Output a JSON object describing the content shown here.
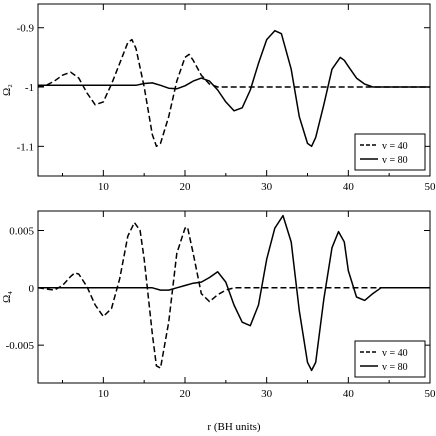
{
  "chart_data": [
    {
      "type": "line",
      "ylabel": "Ω₂",
      "xlabel": "",
      "xlim": [
        2,
        50
      ],
      "ylim": [
        -1.15,
        -0.86
      ],
      "x_ticks": [
        10,
        20,
        30,
        40,
        50
      ],
      "y_ticks": [
        -0.9,
        -1,
        -1.1
      ],
      "y_tick_labels": [
        "-0.9",
        "-1",
        "-1.1"
      ],
      "legend": "bottom-right",
      "series": [
        {
          "name": "v = 40",
          "style": "dashed",
          "x": [
            2,
            3,
            4,
            5,
            6,
            7,
            8,
            9,
            10,
            11,
            12,
            13,
            13.5,
            14,
            15,
            16,
            16.5,
            17,
            18,
            19,
            20,
            20.5,
            21,
            22,
            23,
            24,
            25,
            30,
            40,
            50
          ],
          "y": [
            -1.0,
            -0.997,
            -0.99,
            -0.98,
            -0.975,
            -0.985,
            -1.01,
            -1.03,
            -1.025,
            -0.995,
            -0.96,
            -0.925,
            -0.92,
            -0.935,
            -1.0,
            -1.08,
            -1.1,
            -1.095,
            -1.05,
            -0.99,
            -0.95,
            -0.945,
            -0.955,
            -0.98,
            -0.995,
            -1.0,
            -1.0,
            -1.0,
            -1.0,
            -1.0
          ]
        },
        {
          "name": "v = 80",
          "style": "solid",
          "x": [
            2,
            10,
            14,
            15,
            16,
            17,
            18,
            19,
            20,
            21,
            22,
            23,
            24,
            25,
            26,
            27,
            28,
            29,
            30,
            31,
            31.8,
            33,
            34,
            35,
            35.5,
            36,
            37,
            38,
            39,
            39.5,
            40,
            41,
            42,
            43,
            44,
            45,
            50
          ],
          "y": [
            -0.997,
            -0.997,
            -0.997,
            -0.994,
            -0.993,
            -0.997,
            -1.002,
            -1.003,
            -0.998,
            -0.99,
            -0.985,
            -0.99,
            -1.005,
            -1.025,
            -1.04,
            -1.035,
            -1.005,
            -0.96,
            -0.92,
            -0.905,
            -0.91,
            -0.97,
            -1.05,
            -1.095,
            -1.1,
            -1.085,
            -1.03,
            -0.97,
            -0.95,
            -0.955,
            -0.965,
            -0.985,
            -0.995,
            -1.0,
            -1.0,
            -1.0,
            -1.0
          ]
        }
      ]
    },
    {
      "type": "line",
      "ylabel": "Ω₄",
      "xlabel": "r (BH units)",
      "xlim": [
        2,
        50
      ],
      "ylim": [
        -0.0083,
        0.0067
      ],
      "x_ticks": [
        10,
        20,
        30,
        40,
        50
      ],
      "y_ticks": [
        0.005,
        0,
        -0.005
      ],
      "y_tick_labels": [
        "0.005",
        "0",
        "-0.005"
      ],
      "legend": "bottom-right",
      "series": [
        {
          "name": "v = 40",
          "style": "dashed",
          "x": [
            2,
            3,
            4,
            5,
            6,
            6.5,
            7,
            8,
            9,
            10,
            11,
            12,
            13,
            13.8,
            14.5,
            15,
            16,
            16.5,
            17,
            18,
            19,
            20,
            20.3,
            21,
            22,
            23,
            24,
            25,
            26,
            30,
            40,
            50
          ],
          "y": [
            0.0,
            -0.0001,
            -0.0002,
            0.0002,
            0.001,
            0.0013,
            0.0012,
            0.0001,
            -0.0015,
            -0.0025,
            -0.0018,
            0.0008,
            0.0045,
            0.0057,
            0.005,
            0.0025,
            -0.004,
            -0.0068,
            -0.007,
            -0.003,
            0.003,
            0.0052,
            0.0053,
            0.003,
            -0.0005,
            -0.0012,
            -0.0006,
            -0.0002,
            0.0,
            0.0,
            0.0,
            0.0
          ]
        },
        {
          "name": "v = 80",
          "style": "solid",
          "x": [
            2,
            10,
            14,
            15,
            16,
            17,
            18,
            19,
            20,
            21,
            22,
            23,
            24,
            25,
            26,
            27,
            28,
            29,
            30,
            31,
            32,
            33,
            34,
            35,
            35.5,
            36,
            37,
            38,
            38.8,
            39.5,
            40,
            41,
            42,
            43,
            44,
            45,
            50
          ],
          "y": [
            0.0,
            0.0,
            0.0,
            0.0,
            0.0,
            -0.0002,
            -0.0002,
            0.0,
            0.0002,
            0.0004,
            0.0005,
            0.0009,
            0.0014,
            0.0005,
            -0.0015,
            -0.003,
            -0.0033,
            -0.0015,
            0.0025,
            0.0052,
            0.0063,
            0.004,
            -0.002,
            -0.0065,
            -0.0072,
            -0.0065,
            -0.001,
            0.0035,
            0.0049,
            0.004,
            0.0015,
            -0.0008,
            -0.0011,
            -0.0005,
            0.0,
            0.0,
            0.0
          ]
        }
      ]
    }
  ]
}
